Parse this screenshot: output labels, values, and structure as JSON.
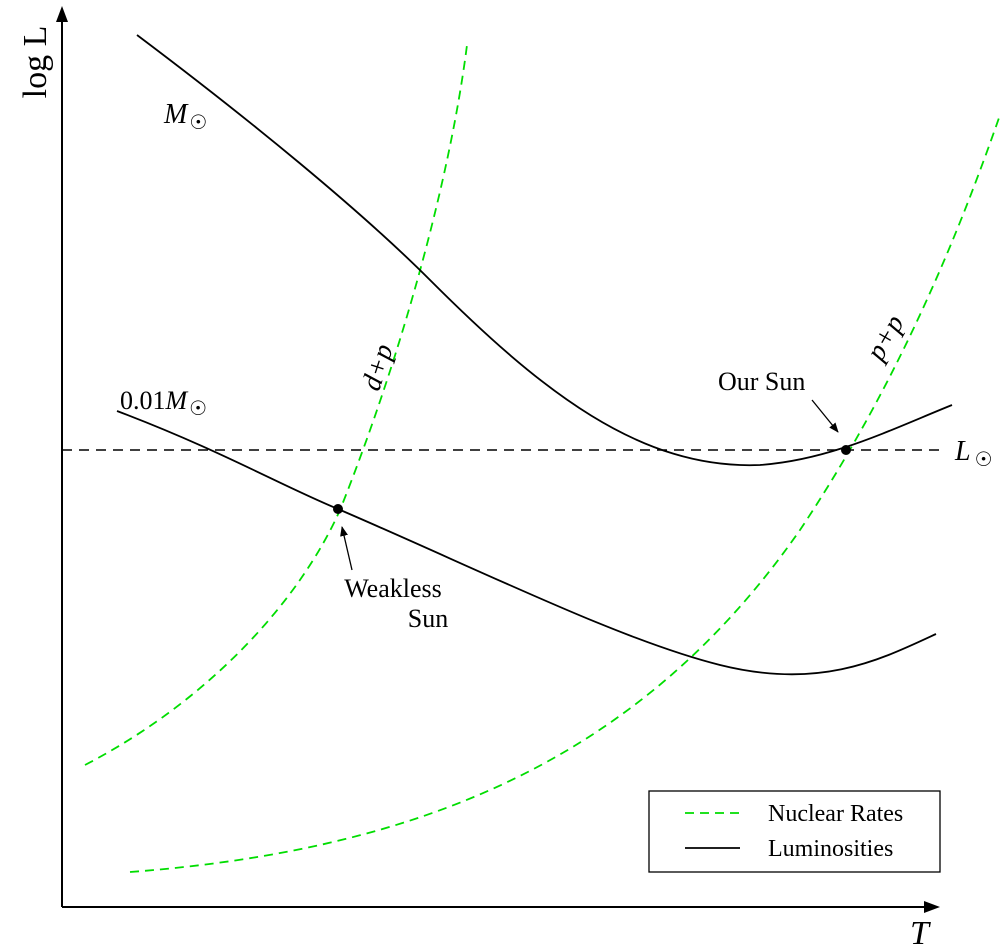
{
  "axes": {
    "y_label": "log L",
    "x_label": "T"
  },
  "curves": {
    "lum_sun_mass": {
      "label": "M",
      "symbol": "☉",
      "style": "solid",
      "color": "#000000"
    },
    "lum_low_mass": {
      "label_prefix": "0.01",
      "label": "M",
      "symbol": "☉",
      "style": "solid",
      "color": "#000000"
    },
    "rate_dp": {
      "label": "d+p",
      "style": "dashed",
      "color": "#00dd00"
    },
    "rate_pp": {
      "label": "p+p",
      "style": "dashed",
      "color": "#00dd00"
    },
    "solar_luminosity": {
      "label": "L",
      "symbol": "☉",
      "style": "dashed",
      "color": "#000000"
    }
  },
  "points": {
    "our_sun": "Our Sun",
    "weakless_sun_line1": "Weakless",
    "weakless_sun_line2": "Sun"
  },
  "legend": {
    "items": [
      {
        "label": "Nuclear Rates",
        "style": "dashed",
        "color": "#00dd00"
      },
      {
        "label": "Luminosities",
        "style": "solid",
        "color": "#000000"
      }
    ]
  }
}
